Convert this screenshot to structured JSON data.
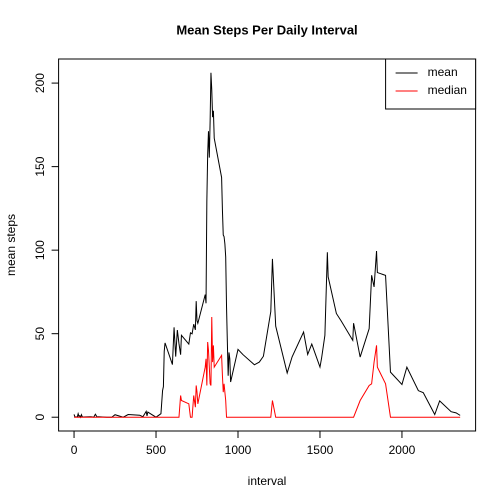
{
  "chart_data": {
    "type": "line",
    "title": "Mean Steps Per Daily Interval",
    "x_label": "interval",
    "y_label": "mean steps",
    "x": [
      0,
      5,
      10,
      15,
      20,
      25,
      30,
      35,
      40,
      45,
      50,
      55,
      100,
      110,
      120,
      130,
      140,
      150,
      200,
      230,
      250,
      300,
      330,
      400,
      420,
      440,
      445,
      450,
      500,
      530,
      540,
      545,
      550,
      555,
      600,
      610,
      620,
      630,
      640,
      650,
      655,
      700,
      710,
      720,
      730,
      740,
      745,
      750,
      755,
      800,
      805,
      810,
      815,
      820,
      825,
      830,
      835,
      840,
      845,
      850,
      855,
      900,
      905,
      910,
      915,
      920,
      925,
      930,
      935,
      940,
      945,
      950,
      955,
      1000,
      1030,
      1100,
      1130,
      1155,
      1200,
      1210,
      1230,
      1300,
      1330,
      1400,
      1425,
      1450,
      1500,
      1510,
      1530,
      1545,
      1550,
      1600,
      1630,
      1700,
      1705,
      1745,
      1800,
      1815,
      1830,
      1845,
      1850,
      1900,
      1930,
      2000,
      2030,
      2100,
      2130,
      2200,
      2230,
      2300,
      2330,
      2355
    ],
    "series": [
      {
        "name": "mean",
        "color": "#000000",
        "values": [
          1.7,
          0.3,
          0.1,
          0.2,
          0.1,
          2.1,
          0.5,
          0.9,
          0,
          1.5,
          0.3,
          0.1,
          0.3,
          0.2,
          0,
          1.8,
          0.2,
          0.3,
          0,
          0,
          1.5,
          0,
          1.6,
          1.2,
          0.3,
          3.5,
          0.8,
          3.1,
          0,
          2.1,
          16,
          18.3,
          39.4,
          44.5,
          31.5,
          53.8,
          36.3,
          52.2,
          44,
          37.4,
          49,
          43.8,
          50.5,
          49.9,
          55.7,
          52.3,
          69.5,
          57.8,
          56.2,
          73.4,
          68.2,
          129.4,
          157.5,
          171.2,
          155.4,
          177.3,
          206.2,
          195.9,
          179.6,
          183.4,
          167,
          143.5,
          124,
          109.1,
          108.1,
          103.7,
          95.9,
          66.2,
          45.2,
          24.8,
          38.8,
          35,
          21.1,
          40.6,
          37.5,
          31.4,
          33,
          36.5,
          63.2,
          94.8,
          54.5,
          26.5,
          36.1,
          51,
          37.6,
          43.8,
          30,
          35.5,
          49,
          98.7,
          84,
          62.1,
          57.5,
          46,
          56.3,
          36,
          53,
          85,
          78,
          99.5,
          86.6,
          84.9,
          27,
          19.6,
          30,
          15.9,
          14.7,
          1.6,
          9.8,
          3.3,
          2.6,
          1.1
        ]
      },
      {
        "name": "median",
        "color": "#ff0000",
        "values": [
          0,
          0,
          0,
          0,
          0,
          0,
          0,
          0,
          0,
          0,
          0,
          0,
          0,
          0,
          0,
          0,
          0,
          0,
          0,
          0,
          0,
          0,
          0,
          0,
          0,
          0,
          0,
          0,
          0,
          0,
          0,
          0,
          0,
          0,
          0,
          0,
          0,
          0,
          0,
          13,
          10,
          8,
          0,
          0,
          13,
          6,
          19,
          15,
          8,
          30,
          35,
          19,
          45,
          40,
          30,
          20,
          19,
          60,
          33,
          43,
          30,
          37,
          25,
          15,
          20,
          15,
          10,
          0,
          0,
          0,
          0,
          0,
          0,
          0,
          0,
          0,
          0,
          0,
          0,
          10,
          0,
          0,
          0,
          0,
          0,
          0,
          0,
          0,
          0,
          0,
          0,
          0,
          0,
          0,
          0,
          10,
          19,
          20,
          33,
          43,
          30,
          20,
          0,
          0,
          0,
          0,
          0,
          0,
          0,
          0,
          0,
          0
        ]
      }
    ],
    "xlim": [
      -94.2,
      2449.2
    ],
    "ylim": [
      -8.25,
      214.42
    ],
    "xticks": [
      0,
      500,
      1000,
      1500,
      2000
    ],
    "yticks": [
      0,
      50,
      100,
      150,
      200
    ],
    "legend": "top-right"
  }
}
